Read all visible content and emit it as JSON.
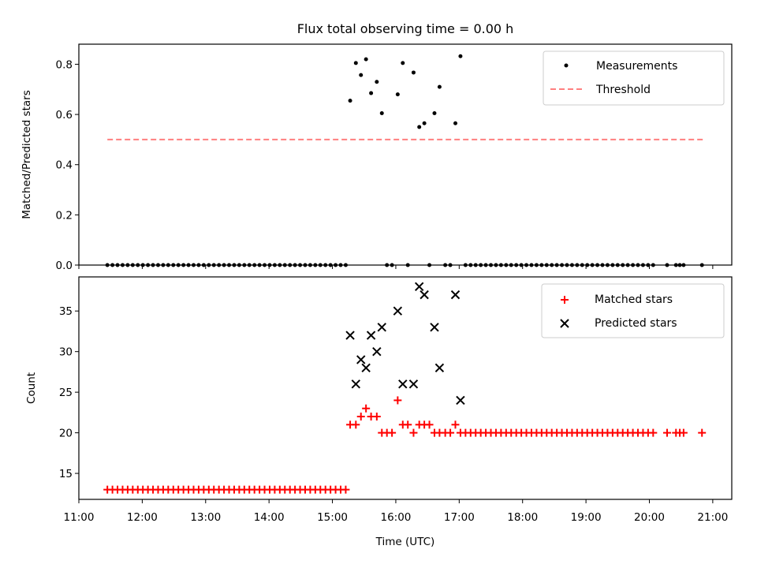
{
  "colors": {
    "measurement": "#000000",
    "threshold": "#ff7f7f",
    "matched": "#ff0000",
    "predicted": "#000000"
  },
  "chart_data": [
    {
      "type": "scatter",
      "title": "Flux total observing time = 0.00 h",
      "xlabel": "",
      "ylabel": "Matched/Predicted stars",
      "xlim": [
        11.0,
        21.3
      ],
      "ylim": [
        0.0,
        0.88
      ],
      "y_ticks": [
        0.0,
        0.2,
        0.4,
        0.6,
        0.8
      ],
      "y_tick_labels": [
        "0.0",
        "0.2",
        "0.4",
        "0.6",
        "0.8"
      ],
      "legend": {
        "placement": "top-right",
        "entries": [
          "Measurements",
          "Threshold"
        ]
      },
      "threshold": {
        "name": "Threshold",
        "value": 0.5,
        "x_start": 11.45,
        "x_end": 20.85
      },
      "series": [
        {
          "name": "Measurements",
          "points": [
            [
              11.45,
              0
            ],
            [
              11.53,
              0
            ],
            [
              11.61,
              0
            ],
            [
              11.69,
              0
            ],
            [
              11.77,
              0
            ],
            [
              11.85,
              0
            ],
            [
              11.93,
              0
            ],
            [
              12.01,
              0
            ],
            [
              12.09,
              0
            ],
            [
              12.17,
              0
            ],
            [
              12.25,
              0
            ],
            [
              12.33,
              0
            ],
            [
              12.41,
              0
            ],
            [
              12.49,
              0
            ],
            [
              12.57,
              0
            ],
            [
              12.65,
              0
            ],
            [
              12.73,
              0
            ],
            [
              12.81,
              0
            ],
            [
              12.89,
              0
            ],
            [
              12.97,
              0
            ],
            [
              13.05,
              0
            ],
            [
              13.13,
              0
            ],
            [
              13.21,
              0
            ],
            [
              13.29,
              0
            ],
            [
              13.37,
              0
            ],
            [
              13.45,
              0
            ],
            [
              13.53,
              0
            ],
            [
              13.61,
              0
            ],
            [
              13.69,
              0
            ],
            [
              13.77,
              0
            ],
            [
              13.85,
              0
            ],
            [
              13.93,
              0
            ],
            [
              14.01,
              0
            ],
            [
              14.09,
              0
            ],
            [
              14.17,
              0
            ],
            [
              14.25,
              0
            ],
            [
              14.33,
              0
            ],
            [
              14.41,
              0
            ],
            [
              14.49,
              0
            ],
            [
              14.57,
              0
            ],
            [
              14.65,
              0
            ],
            [
              14.73,
              0
            ],
            [
              14.81,
              0
            ],
            [
              14.89,
              0
            ],
            [
              14.97,
              0
            ],
            [
              15.05,
              0
            ],
            [
              15.13,
              0
            ],
            [
              15.21,
              0
            ],
            [
              15.28,
              0.655
            ],
            [
              15.37,
              0.805
            ],
            [
              15.45,
              0.757
            ],
            [
              15.53,
              0.82
            ],
            [
              15.61,
              0.685
            ],
            [
              15.7,
              0.73
            ],
            [
              15.78,
              0.605
            ],
            [
              15.86,
              0
            ],
            [
              15.94,
              0
            ],
            [
              16.03,
              0.68
            ],
            [
              16.11,
              0.805
            ],
            [
              16.19,
              0
            ],
            [
              16.28,
              0.767
            ],
            [
              16.37,
              0.55
            ],
            [
              16.45,
              0.565
            ],
            [
              16.53,
              0
            ],
            [
              16.61,
              0.605
            ],
            [
              16.69,
              0.71
            ],
            [
              16.78,
              0
            ],
            [
              16.86,
              0
            ],
            [
              16.94,
              0.565
            ],
            [
              17.02,
              0.832
            ],
            [
              17.1,
              0
            ],
            [
              17.18,
              0
            ],
            [
              17.26,
              0
            ],
            [
              17.34,
              0
            ],
            [
              17.42,
              0
            ],
            [
              17.5,
              0
            ],
            [
              17.58,
              0
            ],
            [
              17.66,
              0
            ],
            [
              17.74,
              0
            ],
            [
              17.82,
              0
            ],
            [
              17.9,
              0
            ],
            [
              17.98,
              0
            ],
            [
              18.06,
              0
            ],
            [
              18.14,
              0
            ],
            [
              18.22,
              0
            ],
            [
              18.3,
              0
            ],
            [
              18.38,
              0
            ],
            [
              18.46,
              0
            ],
            [
              18.54,
              0
            ],
            [
              18.62,
              0
            ],
            [
              18.7,
              0
            ],
            [
              18.78,
              0
            ],
            [
              18.86,
              0
            ],
            [
              18.94,
              0
            ],
            [
              19.02,
              0
            ],
            [
              19.1,
              0
            ],
            [
              19.18,
              0
            ],
            [
              19.26,
              0
            ],
            [
              19.34,
              0
            ],
            [
              19.42,
              0
            ],
            [
              19.5,
              0
            ],
            [
              19.58,
              0
            ],
            [
              19.66,
              0
            ],
            [
              19.74,
              0
            ],
            [
              19.82,
              0
            ],
            [
              19.9,
              0
            ],
            [
              19.98,
              0
            ],
            [
              20.06,
              0
            ],
            [
              20.28,
              0
            ],
            [
              20.42,
              0
            ],
            [
              20.48,
              0
            ],
            [
              20.54,
              0
            ],
            [
              20.83,
              0
            ]
          ]
        }
      ]
    },
    {
      "type": "scatter",
      "title": "",
      "xlabel": "Time (UTC)",
      "ylabel": "Count",
      "xlim": [
        11.0,
        21.3
      ],
      "ylim": [
        11.8,
        39.2
      ],
      "x_ticks": [
        11,
        12,
        13,
        14,
        15,
        16,
        17,
        18,
        19,
        20,
        21
      ],
      "x_tick_labels": [
        "11:00",
        "12:00",
        "13:00",
        "14:00",
        "15:00",
        "16:00",
        "17:00",
        "18:00",
        "19:00",
        "20:00",
        "21:00"
      ],
      "y_ticks": [
        15,
        20,
        25,
        30,
        35
      ],
      "y_tick_labels": [
        "15",
        "20",
        "25",
        "30",
        "35"
      ],
      "legend": {
        "placement": "top-right",
        "entries": [
          "Matched stars",
          "Predicted stars"
        ]
      },
      "series": [
        {
          "name": "Matched stars",
          "marker": "plus",
          "points": [
            [
              11.45,
              13
            ],
            [
              11.53,
              13
            ],
            [
              11.61,
              13
            ],
            [
              11.69,
              13
            ],
            [
              11.77,
              13
            ],
            [
              11.85,
              13
            ],
            [
              11.93,
              13
            ],
            [
              12.01,
              13
            ],
            [
              12.09,
              13
            ],
            [
              12.17,
              13
            ],
            [
              12.25,
              13
            ],
            [
              12.33,
              13
            ],
            [
              12.41,
              13
            ],
            [
              12.49,
              13
            ],
            [
              12.57,
              13
            ],
            [
              12.65,
              13
            ],
            [
              12.73,
              13
            ],
            [
              12.81,
              13
            ],
            [
              12.89,
              13
            ],
            [
              12.97,
              13
            ],
            [
              13.05,
              13
            ],
            [
              13.13,
              13
            ],
            [
              13.21,
              13
            ],
            [
              13.29,
              13
            ],
            [
              13.37,
              13
            ],
            [
              13.45,
              13
            ],
            [
              13.53,
              13
            ],
            [
              13.61,
              13
            ],
            [
              13.69,
              13
            ],
            [
              13.77,
              13
            ],
            [
              13.85,
              13
            ],
            [
              13.93,
              13
            ],
            [
              14.01,
              13
            ],
            [
              14.09,
              13
            ],
            [
              14.17,
              13
            ],
            [
              14.25,
              13
            ],
            [
              14.33,
              13
            ],
            [
              14.41,
              13
            ],
            [
              14.49,
              13
            ],
            [
              14.57,
              13
            ],
            [
              14.65,
              13
            ],
            [
              14.73,
              13
            ],
            [
              14.81,
              13
            ],
            [
              14.89,
              13
            ],
            [
              14.97,
              13
            ],
            [
              15.05,
              13
            ],
            [
              15.13,
              13
            ],
            [
              15.21,
              13
            ],
            [
              15.28,
              21
            ],
            [
              15.37,
              21
            ],
            [
              15.45,
              22
            ],
            [
              15.53,
              23
            ],
            [
              15.61,
              22
            ],
            [
              15.7,
              22
            ],
            [
              15.78,
              20
            ],
            [
              15.86,
              20
            ],
            [
              15.94,
              20
            ],
            [
              16.03,
              24
            ],
            [
              16.11,
              21
            ],
            [
              16.19,
              21
            ],
            [
              16.28,
              20
            ],
            [
              16.37,
              21
            ],
            [
              16.45,
              21
            ],
            [
              16.53,
              21
            ],
            [
              16.61,
              20
            ],
            [
              16.69,
              20
            ],
            [
              16.78,
              20
            ],
            [
              16.86,
              20
            ],
            [
              16.94,
              21
            ],
            [
              17.02,
              20
            ],
            [
              17.1,
              20
            ],
            [
              17.18,
              20
            ],
            [
              17.26,
              20
            ],
            [
              17.34,
              20
            ],
            [
              17.42,
              20
            ],
            [
              17.5,
              20
            ],
            [
              17.58,
              20
            ],
            [
              17.66,
              20
            ],
            [
              17.74,
              20
            ],
            [
              17.82,
              20
            ],
            [
              17.9,
              20
            ],
            [
              17.98,
              20
            ],
            [
              18.06,
              20
            ],
            [
              18.14,
              20
            ],
            [
              18.22,
              20
            ],
            [
              18.3,
              20
            ],
            [
              18.38,
              20
            ],
            [
              18.46,
              20
            ],
            [
              18.54,
              20
            ],
            [
              18.62,
              20
            ],
            [
              18.7,
              20
            ],
            [
              18.78,
              20
            ],
            [
              18.86,
              20
            ],
            [
              18.94,
              20
            ],
            [
              19.02,
              20
            ],
            [
              19.1,
              20
            ],
            [
              19.18,
              20
            ],
            [
              19.26,
              20
            ],
            [
              19.34,
              20
            ],
            [
              19.42,
              20
            ],
            [
              19.5,
              20
            ],
            [
              19.58,
              20
            ],
            [
              19.66,
              20
            ],
            [
              19.74,
              20
            ],
            [
              19.82,
              20
            ],
            [
              19.9,
              20
            ],
            [
              19.98,
              20
            ],
            [
              20.06,
              20
            ],
            [
              20.28,
              20
            ],
            [
              20.42,
              20
            ],
            [
              20.48,
              20
            ],
            [
              20.54,
              20
            ],
            [
              20.83,
              20
            ]
          ]
        },
        {
          "name": "Predicted stars",
          "marker": "x",
          "points": [
            [
              15.28,
              32
            ],
            [
              15.37,
              26
            ],
            [
              15.45,
              29
            ],
            [
              15.53,
              28
            ],
            [
              15.61,
              32
            ],
            [
              15.7,
              30
            ],
            [
              15.78,
              33
            ],
            [
              16.03,
              35
            ],
            [
              16.11,
              26
            ],
            [
              16.28,
              26
            ],
            [
              16.37,
              38
            ],
            [
              16.45,
              37
            ],
            [
              16.61,
              33
            ],
            [
              16.69,
              28
            ],
            [
              16.94,
              37
            ],
            [
              17.02,
              24
            ]
          ]
        }
      ]
    }
  ]
}
